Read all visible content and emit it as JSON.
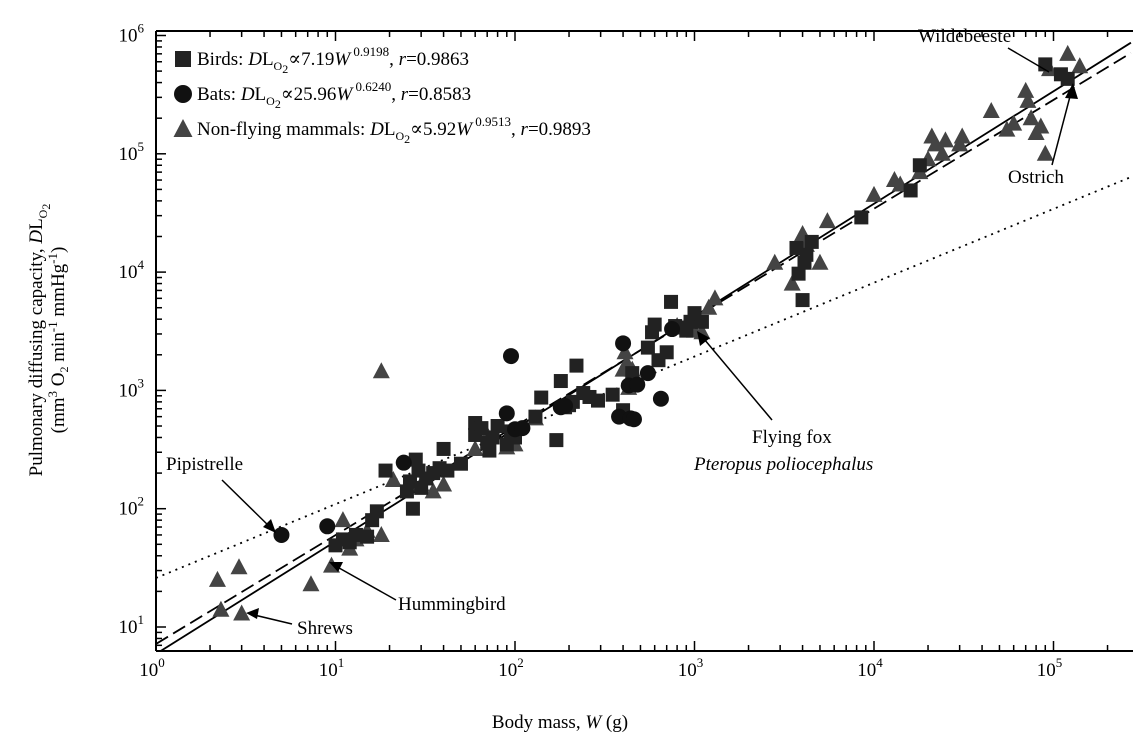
{
  "chart_data": {
    "type": "scatter",
    "x_scale": "log",
    "y_scale": "log",
    "xlim": [
      1,
      270000
    ],
    "ylim": [
      7,
      1200000
    ],
    "xlabel": {
      "text": "Body mass, ",
      "var": "W",
      "unit": " (g)"
    },
    "ylabel": {
      "line1": "Pulmonary diffusing capacity, DL",
      "line1_sub": "O2",
      "line2": "(mm3 O2 min-1 mmHg-1)"
    },
    "x_ticks": [
      {
        "value": 1,
        "base": "10",
        "exp": "0"
      },
      {
        "value": 10,
        "base": "10",
        "exp": "1"
      },
      {
        "value": 100,
        "base": "10",
        "exp": "2"
      },
      {
        "value": 1000,
        "base": "10",
        "exp": "3"
      },
      {
        "value": 10000,
        "base": "10",
        "exp": "4"
      },
      {
        "value": 100000,
        "base": "10",
        "exp": "5"
      }
    ],
    "y_ticks": [
      {
        "value": 10,
        "base": "10",
        "exp": "1"
      },
      {
        "value": 100,
        "base": "10",
        "exp": "2"
      },
      {
        "value": 1000,
        "base": "10",
        "exp": "3"
      },
      {
        "value": 10000,
        "base": "10",
        "exp": "4"
      },
      {
        "value": 100000,
        "base": "10",
        "exp": "5"
      },
      {
        "value": 1000000,
        "base": "10",
        "exp": "6"
      }
    ],
    "legend": {
      "placement": "top-left",
      "entries": [
        {
          "group": "Birds: ",
          "dl": "DL",
          "sub": "O2",
          "coef": "∝7.19",
          "var": "W",
          "exp": "0.9198",
          "r_label": "r",
          "r_value": "=0.9863",
          "marker": "square"
        },
        {
          "group": "Bats: ",
          "dl": "DL",
          "sub": "O2",
          "coef": "∝25.96",
          "var": "W",
          "exp": "0.6240",
          "r_label": "r",
          "r_value": "=0.8583",
          "marker": "circle"
        },
        {
          "group": "Non-flying mammals: ",
          "dl": "DL",
          "sub": "O2",
          "coef": "∝5.92",
          "var": "W",
          "exp": "0.9513",
          "r_label": "r",
          "r_value": "=0.9893",
          "marker": "triangle"
        }
      ]
    },
    "regression_lines": [
      {
        "series": "birds",
        "coefficient": 7.19,
        "exponent": 0.9198,
        "style": "dashed",
        "x_range": [
          1,
          270000
        ]
      },
      {
        "series": "bats",
        "coefficient": 25.96,
        "exponent": 0.624,
        "style": "dotted",
        "x_range": [
          1,
          270000
        ]
      },
      {
        "series": "non-flying mammals",
        "coefficient": 5.92,
        "exponent": 0.9513,
        "style": "solid",
        "x_range": [
          1,
          270000
        ]
      }
    ],
    "series": [
      {
        "key": "birds",
        "marker": "square",
        "color": "#222222",
        "points": [
          [
            10,
            49
          ],
          [
            11,
            55
          ],
          [
            12,
            52
          ],
          [
            13,
            60
          ],
          [
            15,
            58
          ],
          [
            16,
            80
          ],
          [
            17,
            95
          ],
          [
            19,
            210
          ],
          [
            25,
            140
          ],
          [
            26,
            170
          ],
          [
            27,
            100
          ],
          [
            28,
            260
          ],
          [
            29,
            210
          ],
          [
            30,
            150
          ],
          [
            32,
            180
          ],
          [
            35,
            200
          ],
          [
            38,
            220
          ],
          [
            40,
            320
          ],
          [
            42,
            210
          ],
          [
            50,
            240
          ],
          [
            60,
            420
          ],
          [
            60,
            530
          ],
          [
            65,
            480
          ],
          [
            70,
            360
          ],
          [
            72,
            310
          ],
          [
            75,
            400
          ],
          [
            80,
            500
          ],
          [
            90,
            350
          ],
          [
            95,
            450
          ],
          [
            100,
            400
          ],
          [
            130,
            600
          ],
          [
            140,
            870
          ],
          [
            170,
            380
          ],
          [
            180,
            1200
          ],
          [
            190,
            720
          ],
          [
            200,
            750
          ],
          [
            210,
            800
          ],
          [
            220,
            1620
          ],
          [
            240,
            950
          ],
          [
            260,
            880
          ],
          [
            290,
            820
          ],
          [
            350,
            920
          ],
          [
            400,
            680
          ],
          [
            450,
            1400
          ],
          [
            550,
            2300
          ],
          [
            580,
            3100
          ],
          [
            600,
            3600
          ],
          [
            630,
            1800
          ],
          [
            700,
            2100
          ],
          [
            740,
            5600
          ],
          [
            780,
            3500
          ],
          [
            850,
            3400
          ],
          [
            900,
            3200
          ],
          [
            950,
            3800
          ],
          [
            1000,
            4500
          ],
          [
            1100,
            3800
          ],
          [
            3700,
            16000
          ],
          [
            3800,
            9700
          ],
          [
            4000,
            5800
          ],
          [
            4100,
            12000
          ],
          [
            4200,
            14000
          ],
          [
            4500,
            18000
          ],
          [
            8500,
            29000
          ],
          [
            16000,
            49000
          ],
          [
            18000,
            80000
          ],
          [
            90000,
            570000
          ],
          [
            110000,
            470000
          ],
          [
            120000,
            430000
          ]
        ]
      },
      {
        "key": "bats",
        "marker": "circle",
        "color": "#111111",
        "points": [
          [
            5,
            60
          ],
          [
            9,
            71
          ],
          [
            24,
            245
          ],
          [
            90,
            640
          ],
          [
            95,
            1950
          ],
          [
            100,
            470
          ],
          [
            110,
            480
          ],
          [
            180,
            720
          ],
          [
            190,
            740
          ],
          [
            380,
            600
          ],
          [
            400,
            2500
          ],
          [
            430,
            1100
          ],
          [
            440,
            580
          ],
          [
            460,
            570
          ],
          [
            480,
            1120
          ],
          [
            550,
            1400
          ],
          [
            650,
            850
          ],
          [
            750,
            3300
          ]
        ]
      },
      {
        "key": "non-flying mammals",
        "marker": "triangle",
        "color": "#444444",
        "points": [
          [
            2.2,
            25
          ],
          [
            2.3,
            14
          ],
          [
            2.9,
            32
          ],
          [
            3,
            13
          ],
          [
            7.3,
            23
          ],
          [
            9.5,
            33
          ],
          [
            11,
            80
          ],
          [
            12,
            46
          ],
          [
            13,
            55
          ],
          [
            15,
            65
          ],
          [
            18,
            60
          ],
          [
            18,
            1450
          ],
          [
            21,
            175
          ],
          [
            30,
            160
          ],
          [
            35,
            140
          ],
          [
            40,
            160
          ],
          [
            60,
            320
          ],
          [
            70,
            420
          ],
          [
            90,
            330
          ],
          [
            100,
            350
          ],
          [
            130,
            580
          ],
          [
            400,
            1500
          ],
          [
            410,
            2100
          ],
          [
            420,
            1700
          ],
          [
            430,
            1050
          ],
          [
            450,
            1500
          ],
          [
            800,
            3500
          ],
          [
            1000,
            3200
          ],
          [
            1100,
            3100
          ],
          [
            1200,
            5000
          ],
          [
            1300,
            6000
          ],
          [
            2800,
            12000
          ],
          [
            3500,
            8000
          ],
          [
            4000,
            21000
          ],
          [
            4200,
            17000
          ],
          [
            5000,
            12000
          ],
          [
            5500,
            27000
          ],
          [
            10000,
            45000
          ],
          [
            13000,
            60000
          ],
          [
            14000,
            55000
          ],
          [
            18000,
            70000
          ],
          [
            20000,
            90000
          ],
          [
            21000,
            140000
          ],
          [
            22000,
            120000
          ],
          [
            24000,
            100000
          ],
          [
            25000,
            130000
          ],
          [
            30000,
            120000
          ],
          [
            31000,
            140000
          ],
          [
            45000,
            230000
          ],
          [
            55000,
            160000
          ],
          [
            60000,
            180000
          ],
          [
            70000,
            340000
          ],
          [
            72000,
            280000
          ],
          [
            75000,
            200000
          ],
          [
            80000,
            150000
          ],
          [
            85000,
            170000
          ],
          [
            90000,
            100000
          ],
          [
            95000,
            520000
          ],
          [
            120000,
            700000
          ],
          [
            140000,
            550000
          ]
        ]
      }
    ],
    "annotations": [
      {
        "key": "wildebeeste",
        "text": "Wildebeeste",
        "italic": false
      },
      {
        "key": "ostrich",
        "text": "Ostrich",
        "italic": false
      },
      {
        "key": "flying_fox",
        "text": "Flying fox",
        "italic": false
      },
      {
        "key": "pteropus",
        "text": "Pteropus poliocephalus",
        "italic": true
      },
      {
        "key": "pipistrelle",
        "text": "Pipistrelle",
        "italic": false
      },
      {
        "key": "hummingbird",
        "text": "Hummingbird",
        "italic": false
      },
      {
        "key": "shrews",
        "text": "Shrews",
        "italic": false
      }
    ]
  }
}
